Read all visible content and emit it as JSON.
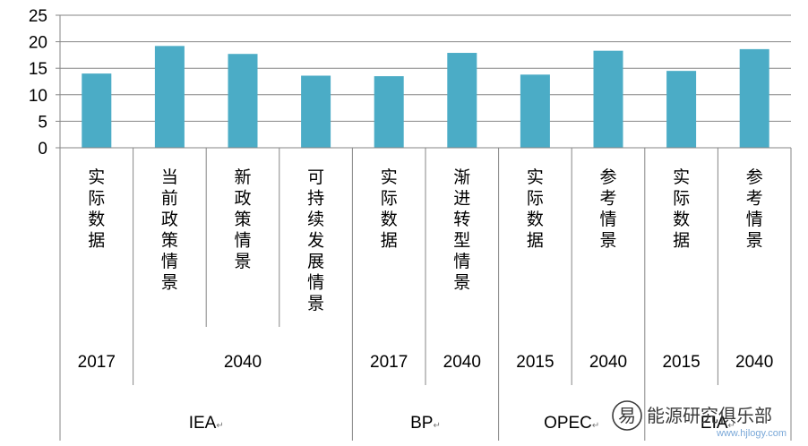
{
  "chart_data": {
    "type": "bar",
    "ylim": [
      0,
      25
    ],
    "yticks": [
      "0",
      "5",
      "10",
      "15",
      "20",
      "25"
    ],
    "grid": true,
    "bar_color": "#4BACC6",
    "categories": [
      {
        "label": "实际数据",
        "value": 14.0
      },
      {
        "label": "当前政策情景",
        "value": 19.2
      },
      {
        "label": "新政策情景",
        "value": 17.7
      },
      {
        "label": "可持续发展情景",
        "value": 13.6
      },
      {
        "label": "实际数据",
        "value": 13.5
      },
      {
        "label": "渐进转型情景",
        "value": 17.9
      },
      {
        "label": "实际数据",
        "value": 13.8
      },
      {
        "label": "参考情景",
        "value": 18.3
      },
      {
        "label": "实际数据",
        "value": 14.5
      },
      {
        "label": "参考情景",
        "value": 18.6
      }
    ],
    "years": [
      {
        "label": "2017",
        "start": 0,
        "span": 1
      },
      {
        "label": "2040",
        "start": 1,
        "span": 3
      },
      {
        "label": "2017",
        "start": 4,
        "span": 1
      },
      {
        "label": "2040",
        "start": 5,
        "span": 1
      },
      {
        "label": "2015",
        "start": 6,
        "span": 1
      },
      {
        "label": "2040",
        "start": 7,
        "span": 1
      },
      {
        "label": "2015",
        "start": 8,
        "span": 1
      },
      {
        "label": "2040",
        "start": 9,
        "span": 1
      }
    ],
    "sources": [
      {
        "label": "IEA",
        "start": 0,
        "span": 4
      },
      {
        "label": "BP",
        "start": 4,
        "span": 2
      },
      {
        "label": "OPEC",
        "start": 6,
        "span": 2
      },
      {
        "label": "EIA",
        "start": 8,
        "span": 2
      }
    ],
    "return_mark": "↵"
  },
  "watermark": {
    "text": "能源研究俱乐部",
    "logo_text": "易",
    "url": "www.hjlogy.com"
  }
}
